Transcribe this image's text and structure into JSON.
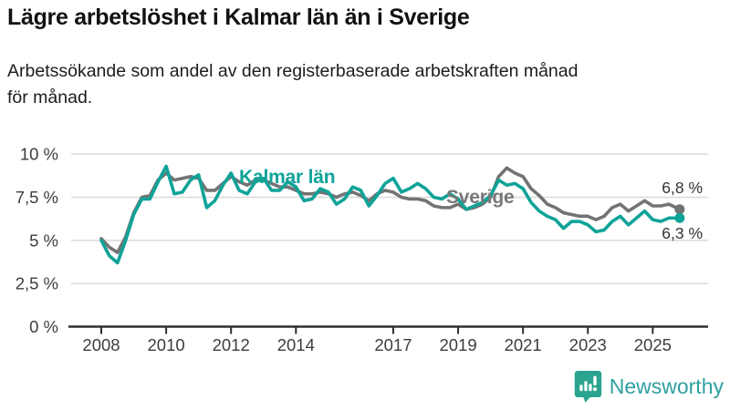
{
  "header": {
    "title": "Lägre arbetslöshet i Kalmar län än i Sverige",
    "subtitle_lines": [
      "Arbetssökande som andel av den registerbaserade arbetskraften månad",
      "för månad."
    ]
  },
  "footer": {
    "brand": "Newsworthy",
    "logo_icon": "bar-chart-speech-bubble",
    "brand_color": "#2f9fa0",
    "icon_color": "#2aa48e"
  },
  "chart_data": {
    "type": "line",
    "title": "Lägre arbetslöshet i Kalmar län än i Sverige",
    "xlabel": "",
    "ylabel": "",
    "grid": "horizontal",
    "legend_position": "inline",
    "xlim": [
      2007.9,
      2026.1
    ],
    "ylim": [
      0,
      10
    ],
    "y_ticks": [
      {
        "v": 0,
        "label": "0 %"
      },
      {
        "v": 2.5,
        "label": "2,5 %"
      },
      {
        "v": 5,
        "label": "5 %"
      },
      {
        "v": 7.5,
        "label": "7,5 %"
      },
      {
        "v": 10,
        "label": "10 %"
      }
    ],
    "x_ticks": [
      {
        "t": 2008,
        "label": "2008"
      },
      {
        "t": 2010,
        "label": "2010"
      },
      {
        "t": 2012,
        "label": "2012"
      },
      {
        "t": 2014,
        "label": "2014"
      },
      {
        "t": 2017,
        "label": "2017"
      },
      {
        "t": 2019,
        "label": "2019"
      },
      {
        "t": 2021,
        "label": "2021"
      },
      {
        "t": 2023,
        "label": "2023"
      },
      {
        "t": 2025,
        "label": "2025"
      }
    ],
    "x": [
      2008,
      2008.25,
      2008.5,
      2008.75,
      2009,
      2009.25,
      2009.5,
      2009.75,
      2010,
      2010.25,
      2010.5,
      2010.75,
      2011,
      2011.25,
      2011.5,
      2011.75,
      2012,
      2012.25,
      2012.5,
      2012.75,
      2013,
      2013.25,
      2013.5,
      2013.75,
      2014,
      2014.25,
      2014.5,
      2014.75,
      2015,
      2015.25,
      2015.5,
      2015.75,
      2016,
      2016.25,
      2016.5,
      2016.75,
      2017,
      2017.25,
      2017.5,
      2017.75,
      2018,
      2018.25,
      2018.5,
      2018.75,
      2019,
      2019.25,
      2019.5,
      2019.75,
      2020,
      2020.25,
      2020.5,
      2020.75,
      2021,
      2021.25,
      2021.5,
      2021.75,
      2022,
      2022.25,
      2022.5,
      2022.75,
      2023,
      2023.25,
      2023.5,
      2023.75,
      2024,
      2024.25,
      2024.5,
      2024.75,
      2025,
      2025.25,
      2025.5,
      2025.83
    ],
    "series": [
      {
        "id": "kalmar",
        "name": "Kalmar län",
        "color": "#0fa398",
        "end_value": 6.3,
        "values": [
          5.0,
          4.1,
          3.7,
          5.0,
          6.5,
          7.4,
          7.4,
          8.4,
          9.3,
          7.7,
          7.8,
          8.5,
          8.8,
          6.9,
          7.3,
          8.2,
          8.9,
          7.9,
          7.7,
          8.4,
          8.6,
          7.9,
          7.9,
          8.4,
          8.1,
          7.3,
          7.4,
          8.0,
          7.8,
          7.1,
          7.4,
          8.1,
          7.9,
          7.0,
          7.6,
          8.3,
          8.6,
          7.8,
          8.0,
          8.3,
          8.0,
          7.5,
          7.4,
          7.7,
          7.4,
          6.8,
          7.0,
          7.2,
          7.6,
          8.5,
          8.2,
          8.3,
          8.0,
          7.2,
          6.7,
          6.4,
          6.2,
          5.7,
          6.1,
          6.1,
          5.9,
          5.5,
          5.6,
          6.1,
          6.4,
          5.9,
          6.3,
          6.7,
          6.2,
          6.1,
          6.3,
          6.3
        ]
      },
      {
        "id": "sverige",
        "name": "Sverige",
        "color": "#737373",
        "end_value": 6.8,
        "values": [
          5.1,
          4.6,
          4.3,
          5.2,
          6.6,
          7.5,
          7.6,
          8.5,
          8.9,
          8.5,
          8.6,
          8.7,
          8.6,
          7.9,
          7.9,
          8.3,
          8.7,
          8.4,
          8.2,
          8.5,
          8.5,
          8.3,
          8.1,
          8.1,
          7.9,
          7.7,
          7.7,
          7.8,
          7.7,
          7.5,
          7.7,
          7.8,
          7.6,
          7.3,
          7.7,
          7.9,
          7.8,
          7.5,
          7.4,
          7.4,
          7.3,
          7.0,
          6.9,
          6.9,
          7.1,
          6.8,
          6.9,
          7.1,
          7.5,
          8.7,
          9.2,
          8.9,
          8.7,
          8.0,
          7.6,
          7.1,
          6.9,
          6.6,
          6.5,
          6.4,
          6.4,
          6.2,
          6.4,
          6.9,
          7.1,
          6.7,
          7.0,
          7.3,
          7.0,
          7.0,
          7.1,
          6.8
        ]
      }
    ],
    "end_labels": {
      "sverige": "6,8 %",
      "kalmar": "6,3 %"
    }
  }
}
